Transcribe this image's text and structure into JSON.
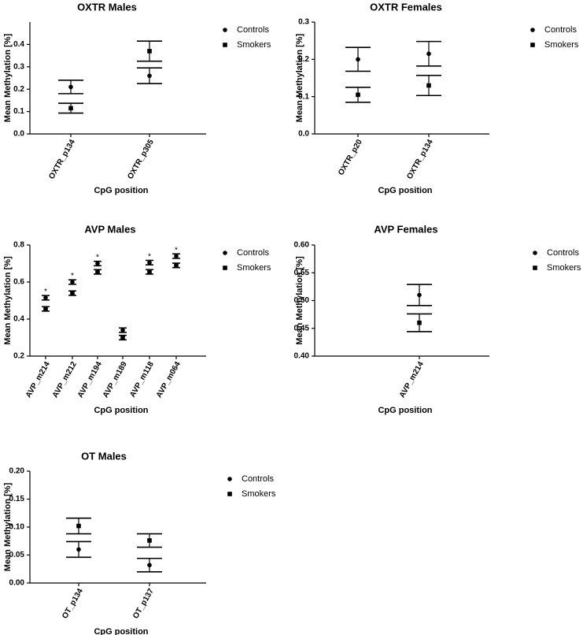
{
  "figure": {
    "legend": {
      "controls_label": "Controls",
      "smokers_label": "Smokers"
    },
    "xlabel": "CpG position",
    "ylabel": "Mean Methylation [%]"
  },
  "chart_data": [
    {
      "id": "oxtr-males",
      "type": "scatter",
      "title": "OXTR Males",
      "xlabel": "CpG position",
      "ylabel": "Mean Methylation [%]",
      "ylim": [
        0,
        0.5
      ],
      "yticks": [
        "0.0",
        "0.1",
        "0.2",
        "0.3",
        "0.4"
      ],
      "ytick_values": [
        0,
        0.1,
        0.2,
        0.3,
        0.4
      ],
      "categories": [
        "OXTR_p134",
        "OXTR_p305"
      ],
      "series": [
        {
          "name": "Controls",
          "marker": "circle",
          "values": [
            0.21,
            0.26
          ],
          "errors": [
            0.03,
            0.035
          ]
        },
        {
          "name": "Smokers",
          "marker": "square",
          "values": [
            0.115,
            0.37
          ],
          "errors": [
            0.022,
            0.045
          ]
        }
      ],
      "significance": [
        false,
        false
      ],
      "legend": [
        "Controls",
        "Smokers"
      ]
    },
    {
      "id": "oxtr-females",
      "type": "scatter",
      "title": "OXTR Females",
      "xlabel": "CpG position",
      "ylabel": "Mean Methylation [%]",
      "ylim": [
        0,
        0.3
      ],
      "yticks": [
        "0.0",
        "0.1",
        "0.2",
        "0.3"
      ],
      "ytick_values": [
        0,
        0.1,
        0.2,
        0.3
      ],
      "categories": [
        "OXTR_p20",
        "OXTR_p134"
      ],
      "series": [
        {
          "name": "Controls",
          "marker": "circle",
          "values": [
            0.2,
            0.215
          ],
          "errors": [
            0.032,
            0.033
          ]
        },
        {
          "name": "Smokers",
          "marker": "square",
          "values": [
            0.105,
            0.13
          ],
          "errors": [
            0.02,
            0.027
          ]
        }
      ],
      "significance": [
        false,
        false
      ],
      "legend": [
        "Controls",
        "Smokers"
      ]
    },
    {
      "id": "avp-males",
      "type": "scatter",
      "title": "AVP  Males",
      "xlabel": "CpG position",
      "ylabel": "Mean Methylation [%]",
      "ylim": [
        0.2,
        0.8
      ],
      "yticks": [
        "0.2",
        "0.4",
        "0.6",
        "0.8"
      ],
      "ytick_values": [
        0.2,
        0.4,
        0.6,
        0.8
      ],
      "categories": [
        "AVP_m214",
        "AVP_m212",
        "AVP_m194",
        "AVP_m189",
        "AVP_m118",
        "AVP_m064"
      ],
      "series": [
        {
          "name": "Controls",
          "marker": "circle",
          "values": [
            0.515,
            0.6,
            0.7,
            0.34,
            0.705,
            0.74
          ],
          "errors": [
            0.012,
            0.012,
            0.012,
            0.012,
            0.012,
            0.012
          ]
        },
        {
          "name": "Smokers",
          "marker": "square",
          "values": [
            0.455,
            0.54,
            0.655,
            0.3,
            0.655,
            0.69
          ],
          "errors": [
            0.012,
            0.012,
            0.012,
            0.012,
            0.012,
            0.012
          ]
        }
      ],
      "significance": [
        true,
        true,
        true,
        false,
        true,
        true
      ],
      "significance_label": "*",
      "legend": [
        "Controls",
        "Smokers"
      ]
    },
    {
      "id": "avp-females",
      "type": "scatter",
      "title": "AVP  Females",
      "xlabel": "CpG position",
      "ylabel": "Mean Methylation [%]",
      "ylim": [
        0.4,
        0.6
      ],
      "yticks": [
        "0.40",
        "0.45",
        "0.50",
        "0.55",
        "0.60"
      ],
      "ytick_values": [
        0.4,
        0.45,
        0.5,
        0.55,
        0.6
      ],
      "categories": [
        "AVP_m214"
      ],
      "series": [
        {
          "name": "Controls",
          "marker": "circle",
          "values": [
            0.51
          ],
          "errors": [
            0.019
          ]
        },
        {
          "name": "Smokers",
          "marker": "square",
          "values": [
            0.46
          ],
          "errors": [
            0.016
          ]
        }
      ],
      "significance": [
        false
      ],
      "legend": [
        "Controls",
        "Smokers"
      ]
    },
    {
      "id": "ot-males",
      "type": "scatter",
      "title": "OT Males",
      "xlabel": "CpG position",
      "ylabel": "Mean Methylation [%]",
      "ylim": [
        0,
        0.2
      ],
      "yticks": [
        "0.00",
        "0.05",
        "0.10",
        "0.15",
        "0.20"
      ],
      "ytick_values": [
        0,
        0.05,
        0.1,
        0.15,
        0.2
      ],
      "categories": [
        "OT_p134",
        "OT_p137"
      ],
      "series": [
        {
          "name": "Controls",
          "marker": "circle",
          "values": [
            0.06,
            0.032
          ],
          "errors": [
            0.014,
            0.012
          ]
        },
        {
          "name": "Smokers",
          "marker": "square",
          "values": [
            0.102,
            0.076
          ],
          "errors": [
            0.014,
            0.012
          ]
        }
      ],
      "significance": [
        false,
        false
      ],
      "legend": [
        "Controls",
        "Smokers"
      ]
    }
  ]
}
